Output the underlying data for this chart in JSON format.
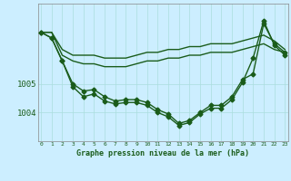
{
  "hours": [
    0,
    1,
    2,
    3,
    4,
    5,
    6,
    7,
    8,
    9,
    10,
    11,
    12,
    13,
    14,
    15,
    16,
    17,
    18,
    19,
    20,
    21,
    22,
    23
  ],
  "line1": [
    1006.8,
    1006.8,
    1006.2,
    1006.0,
    1006.0,
    1006.0,
    1005.9,
    1005.9,
    1005.9,
    1006.0,
    1006.1,
    1006.1,
    1006.2,
    1006.2,
    1006.3,
    1006.3,
    1006.4,
    1006.4,
    1006.4,
    1006.5,
    1006.6,
    1006.7,
    1006.5,
    1006.2
  ],
  "line2": [
    1006.8,
    1006.8,
    1006.0,
    1005.8,
    1005.7,
    1005.7,
    1005.6,
    1005.6,
    1005.6,
    1005.7,
    1005.8,
    1005.8,
    1005.9,
    1005.9,
    1006.0,
    1006.0,
    1006.1,
    1006.1,
    1006.1,
    1006.2,
    1006.3,
    1006.4,
    1006.2,
    1006.1
  ],
  "line3": [
    1006.8,
    1006.6,
    1005.8,
    1005.0,
    1004.75,
    1004.8,
    1004.55,
    1004.4,
    1004.45,
    1004.45,
    1004.35,
    1004.1,
    1003.95,
    1003.62,
    1003.72,
    1004.0,
    1004.25,
    1004.25,
    1004.55,
    1005.15,
    1005.35,
    1007.1,
    1006.4,
    1006.1
  ],
  "line4": [
    1006.8,
    1006.6,
    1005.8,
    1004.9,
    1004.55,
    1004.65,
    1004.4,
    1004.3,
    1004.35,
    1004.35,
    1004.25,
    1004.0,
    1003.85,
    1003.55,
    1003.65,
    1003.95,
    1004.15,
    1004.15,
    1004.45,
    1005.05,
    1005.9,
    1007.2,
    1006.35,
    1006.0
  ],
  "bg_color": "#cceeff",
  "grid_color": "#aadddd",
  "line_color": "#1a5c1a",
  "xlabel": "Graphe pression niveau de la mer (hPa)",
  "xlabel_color": "#1a5c1a",
  "ytick_labels": [
    "1004",
    "1005"
  ],
  "ytick_values": [
    1004.0,
    1005.0
  ],
  "ylim_min": 1003.2,
  "ylim_max": 1007.8,
  "xlim_min": -0.3,
  "xlim_max": 23.3,
  "marker": "D",
  "marker_size": 2.5,
  "linewidth": 1.0
}
